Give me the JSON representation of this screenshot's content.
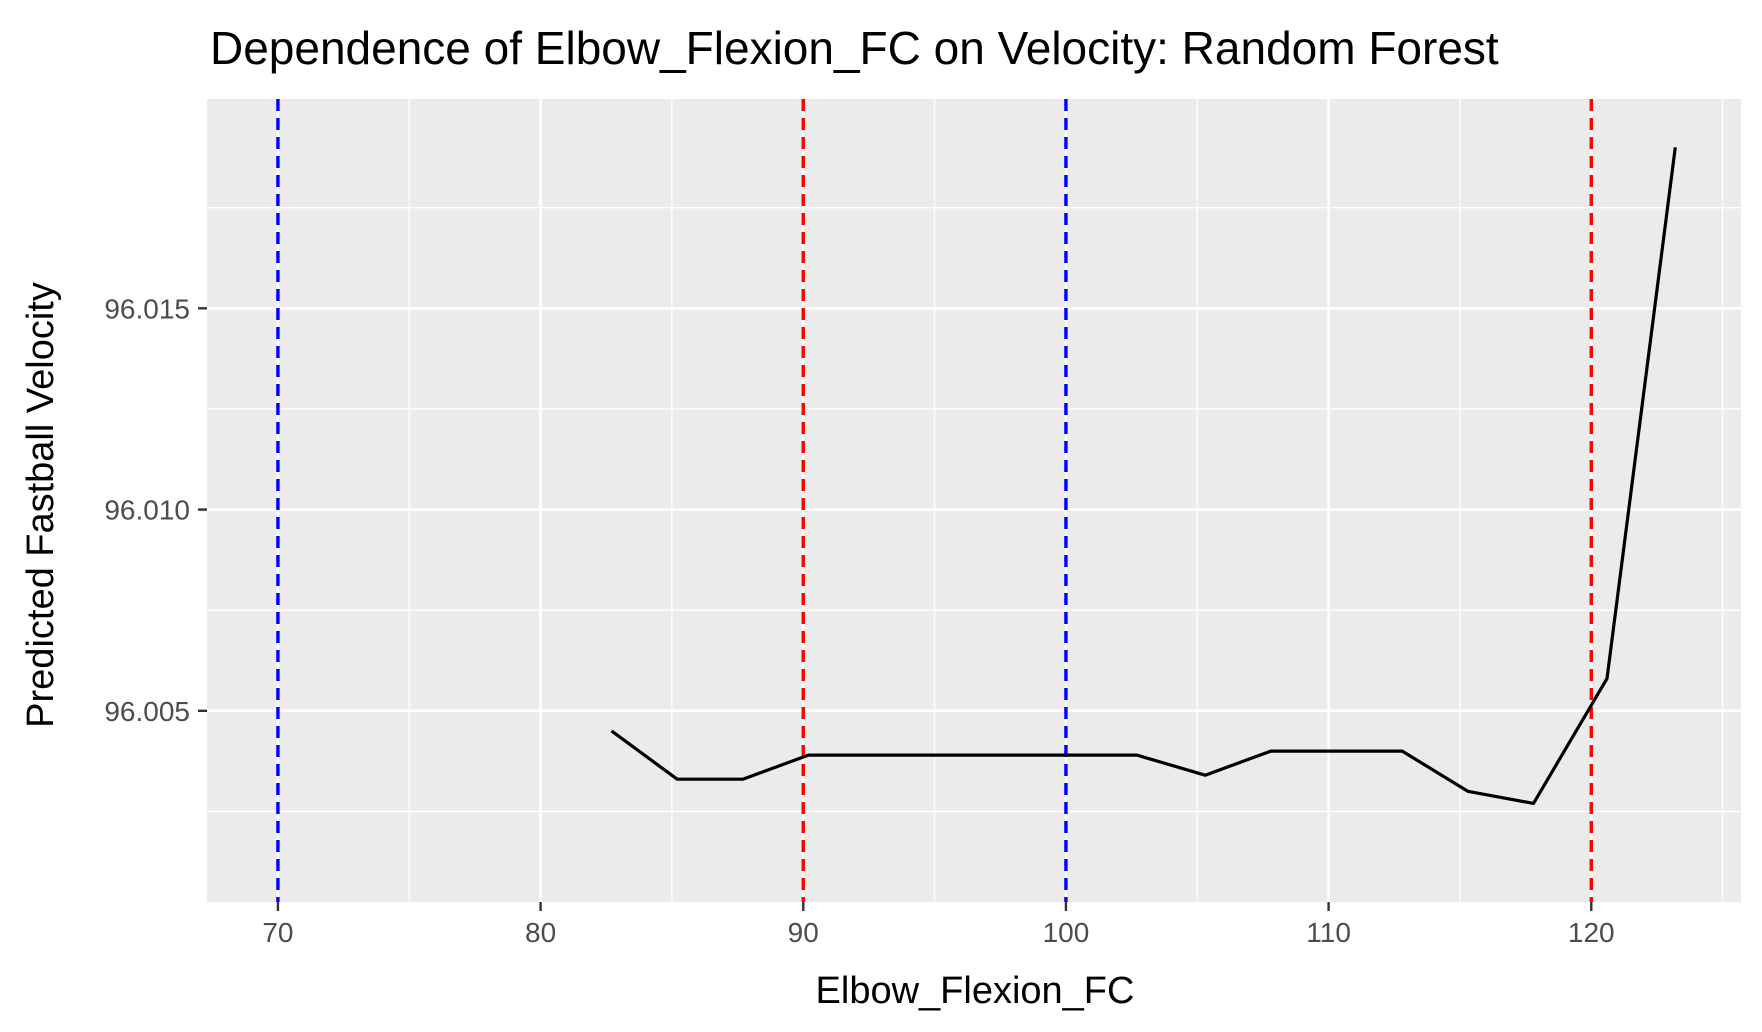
{
  "chart_data": {
    "type": "line",
    "title": "Dependence of Elbow_Flexion_FC on Velocity: Random Forest",
    "xlabel": "Elbow_Flexion_FC",
    "ylabel": "Predicted Fastball Velocity",
    "xlim": [
      67.3,
      125.7
    ],
    "ylim": [
      96.00025,
      96.0202
    ],
    "x_ticks": [
      70,
      80,
      90,
      100,
      110,
      120
    ],
    "x_tick_labels": [
      "70",
      "80",
      "90",
      "100",
      "110",
      "120"
    ],
    "y_ticks": [
      96.005,
      96.01,
      96.015
    ],
    "y_tick_labels": [
      "96.005",
      "96.010",
      "96.015"
    ],
    "grid": true,
    "series": [
      {
        "color": "#000000",
        "x": [
          82.7,
          85.2,
          87.7,
          90.2,
          92.7,
          95.2,
          97.7,
          100.2,
          102.7,
          105.3,
          107.8,
          110.3,
          112.8,
          115.3,
          117.8,
          120.6,
          123.2
        ],
        "y": [
          96.0045,
          96.0033,
          96.0033,
          96.0039,
          96.0039,
          96.0039,
          96.0039,
          96.0039,
          96.0039,
          96.0034,
          96.004,
          96.004,
          96.004,
          96.003,
          96.0027,
          96.0058,
          96.019
        ]
      }
    ],
    "reference_lines": [
      {
        "x": 70,
        "color": "#0000ff",
        "style": "dashed"
      },
      {
        "x": 90,
        "color": "#ff0000",
        "style": "dashed"
      },
      {
        "x": 100,
        "color": "#0000ff",
        "style": "dashed"
      },
      {
        "x": 120,
        "color": "#ff0000",
        "style": "dashed"
      }
    ]
  }
}
